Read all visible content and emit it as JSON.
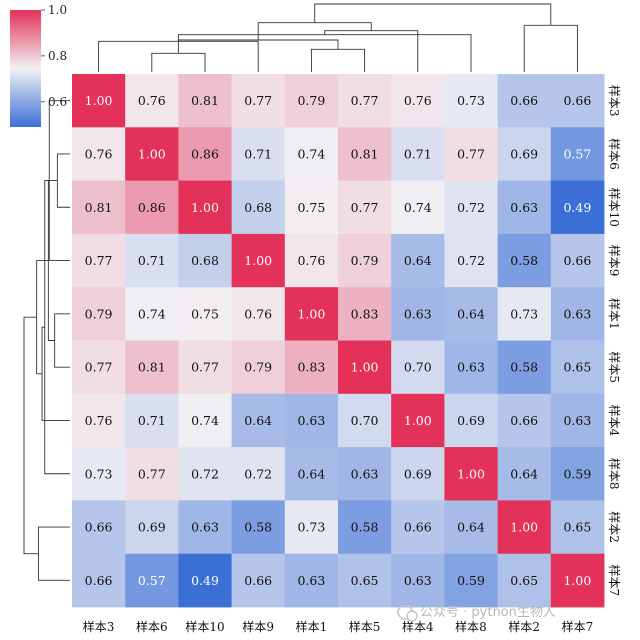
{
  "chart_data": {
    "type": "heatmap",
    "title": "",
    "labels": [
      "样本3",
      "样本6",
      "样本10",
      "样本9",
      "样本1",
      "样本5",
      "样本4",
      "样本8",
      "样本2",
      "样本7"
    ],
    "matrix": [
      [
        1.0,
        0.76,
        0.81,
        0.77,
        0.79,
        0.77,
        0.76,
        0.73,
        0.66,
        0.66
      ],
      [
        0.76,
        1.0,
        0.86,
        0.71,
        0.74,
        0.81,
        0.71,
        0.77,
        0.69,
        0.57
      ],
      [
        0.81,
        0.86,
        1.0,
        0.68,
        0.75,
        0.77,
        0.74,
        0.72,
        0.63,
        0.49
      ],
      [
        0.77,
        0.71,
        0.68,
        1.0,
        0.76,
        0.79,
        0.64,
        0.72,
        0.58,
        0.66
      ],
      [
        0.79,
        0.74,
        0.75,
        0.76,
        1.0,
        0.83,
        0.63,
        0.64,
        0.73,
        0.63
      ],
      [
        0.77,
        0.81,
        0.77,
        0.79,
        0.83,
        1.0,
        0.7,
        0.63,
        0.58,
        0.65
      ],
      [
        0.76,
        0.71,
        0.74,
        0.64,
        0.63,
        0.7,
        1.0,
        0.69,
        0.66,
        0.63
      ],
      [
        0.73,
        0.77,
        0.72,
        0.72,
        0.64,
        0.63,
        0.69,
        1.0,
        0.64,
        0.59
      ],
      [
        0.66,
        0.69,
        0.63,
        0.58,
        0.73,
        0.58,
        0.66,
        0.64,
        1.0,
        0.65
      ],
      [
        0.66,
        0.57,
        0.49,
        0.66,
        0.63,
        0.65,
        0.63,
        0.59,
        0.65,
        1.0
      ]
    ],
    "colorbar": {
      "ticks": [
        1.0,
        0.8,
        0.6
      ],
      "range": [
        0.49,
        1.0
      ]
    },
    "colormap": {
      "low": "#3b6fd6",
      "mid": "#f2f1f4",
      "high": "#e3315a"
    },
    "dendrogram": {
      "rows": true,
      "columns": true
    }
  },
  "watermark": "公众号 · python生物人"
}
